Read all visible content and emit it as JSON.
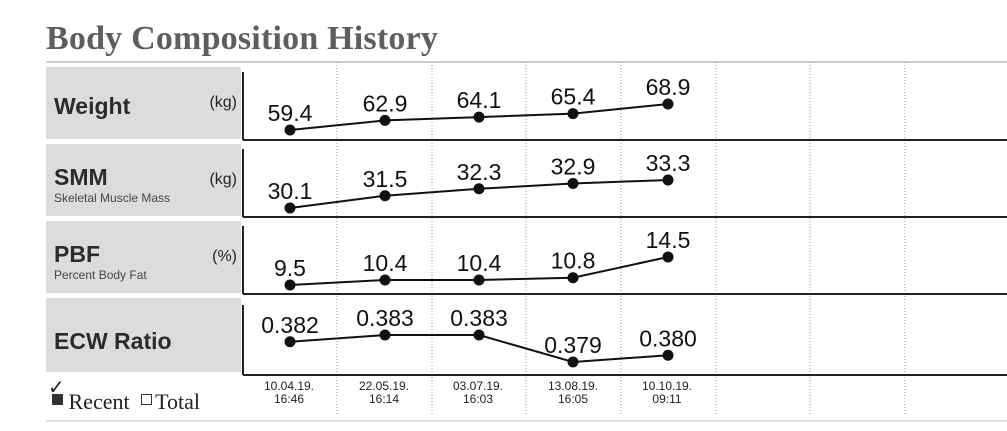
{
  "title": "Body Composition History",
  "legend": {
    "recent_label": "Recent",
    "total_label": "Total",
    "selected": "Recent"
  },
  "chart_data": [
    {
      "type": "line",
      "title": "Weight",
      "subtitle": "",
      "unit": "(kg)",
      "x": [
        "10.04.19. 16:46",
        "22.05.19. 16:14",
        "03.07.19. 16:03",
        "13.08.19. 16:05",
        "10.10.19. 09:11"
      ],
      "values": [
        "59.4",
        "62.9",
        "64.1",
        "65.4",
        "68.9"
      ]
    },
    {
      "type": "line",
      "title": "SMM",
      "subtitle": "Skeletal Muscle Mass",
      "unit": "(kg)",
      "x": [
        "10.04.19. 16:46",
        "22.05.19. 16:14",
        "03.07.19. 16:03",
        "13.08.19. 16:05",
        "10.10.19. 09:11"
      ],
      "values": [
        "30.1",
        "31.5",
        "32.3",
        "32.9",
        "33.3"
      ]
    },
    {
      "type": "line",
      "title": "PBF",
      "subtitle": "Percent Body Fat",
      "unit": "(%)",
      "x": [
        "10.04.19. 16:46",
        "22.05.19. 16:14",
        "03.07.19. 16:03",
        "13.08.19. 16:05",
        "10.10.19. 09:11"
      ],
      "values": [
        "9.5",
        "10.4",
        "10.4",
        "10.8",
        "14.5"
      ]
    },
    {
      "type": "line",
      "title": "ECW Ratio",
      "subtitle": "",
      "unit": "",
      "x": [
        "10.04.19. 16:46",
        "22.05.19. 16:14",
        "03.07.19. 16:03",
        "13.08.19. 16:05",
        "10.10.19. 09:11"
      ],
      "values": [
        "0.382",
        "0.383",
        "0.383",
        "0.379",
        "0.380"
      ]
    }
  ],
  "dates": [
    {
      "date": "10.04.19.",
      "time": "16:46"
    },
    {
      "date": "22.05.19.",
      "time": "16:14"
    },
    {
      "date": "03.07.19.",
      "time": "16:03"
    },
    {
      "date": "13.08.19.",
      "time": "16:05"
    },
    {
      "date": "10.10.19.",
      "time": "09:11"
    }
  ]
}
